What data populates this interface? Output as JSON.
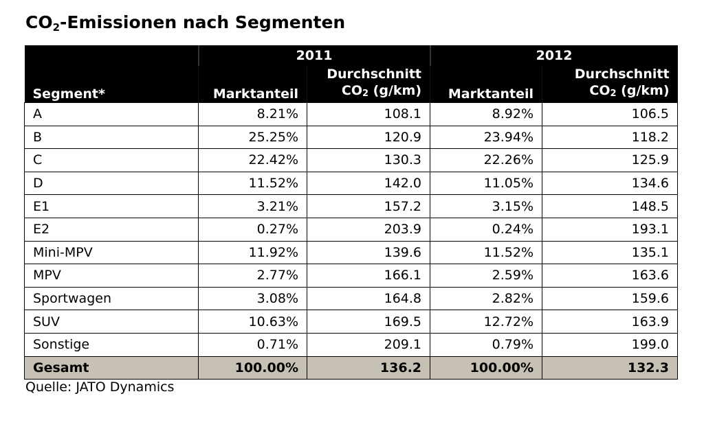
{
  "title": {
    "prefix": "CO",
    "sub": "2",
    "rest": "-Emissionen nach Segmenten"
  },
  "chart_data": {
    "type": "table",
    "years": [
      "2011",
      "2012"
    ],
    "columns": {
      "segment": "Segment*",
      "share": "Marktanteil",
      "avg_line1": "Durchschnitt",
      "avg_co": "CO",
      "avg_sub": "2",
      "avg_unit": " (g/km)"
    },
    "rows": [
      {
        "segment": "A",
        "share_2011": "8.21%",
        "co2_2011": "108.1",
        "share_2012": "8.92%",
        "co2_2012": "106.5"
      },
      {
        "segment": "B",
        "share_2011": "25.25%",
        "co2_2011": "120.9",
        "share_2012": "23.94%",
        "co2_2012": "118.2"
      },
      {
        "segment": "C",
        "share_2011": "22.42%",
        "co2_2011": "130.3",
        "share_2012": "22.26%",
        "co2_2012": "125.9"
      },
      {
        "segment": "D",
        "share_2011": "11.52%",
        "co2_2011": "142.0",
        "share_2012": "11.05%",
        "co2_2012": "134.6"
      },
      {
        "segment": "E1",
        "share_2011": "3.21%",
        "co2_2011": "157.2",
        "share_2012": "3.15%",
        "co2_2012": "148.5"
      },
      {
        "segment": "E2",
        "share_2011": "0.27%",
        "co2_2011": "203.9",
        "share_2012": "0.24%",
        "co2_2012": "193.1"
      },
      {
        "segment": "Mini-MPV",
        "share_2011": "11.92%",
        "co2_2011": "139.6",
        "share_2012": "11.52%",
        "co2_2012": "135.1"
      },
      {
        "segment": "MPV",
        "share_2011": "2.77%",
        "co2_2011": "166.1",
        "share_2012": "2.59%",
        "co2_2012": "163.6"
      },
      {
        "segment": "Sportwagen",
        "share_2011": "3.08%",
        "co2_2011": "164.8",
        "share_2012": "2.82%",
        "co2_2012": "159.6"
      },
      {
        "segment": "SUV",
        "share_2011": "10.63%",
        "co2_2011": "169.5",
        "share_2012": "12.72%",
        "co2_2012": "163.9"
      },
      {
        "segment": "Sonstige",
        "share_2011": "0.71%",
        "co2_2011": "209.1",
        "share_2012": "0.79%",
        "co2_2012": "199.0"
      }
    ],
    "total": {
      "segment": "Gesamt",
      "share_2011": "100.00%",
      "co2_2011": "136.2",
      "share_2012": "100.00%",
      "co2_2012": "132.3"
    }
  },
  "source": "Quelle: JATO Dynamics",
  "colors": {
    "header_bg": "#000000",
    "header_text": "#ffffff",
    "total_bg": "#c7c0b4"
  }
}
